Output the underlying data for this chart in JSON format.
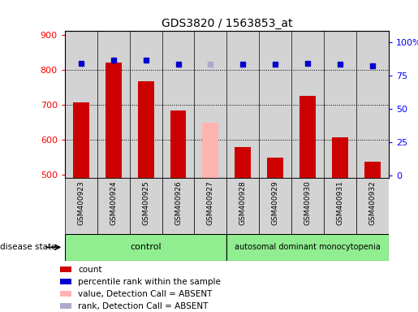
{
  "title": "GDS3820 / 1563853_at",
  "samples": [
    "GSM400923",
    "GSM400924",
    "GSM400925",
    "GSM400926",
    "GSM400927",
    "GSM400928",
    "GSM400929",
    "GSM400930",
    "GSM400931",
    "GSM400932"
  ],
  "bar_values": [
    706,
    820,
    766,
    682,
    648,
    578,
    548,
    724,
    606,
    536
  ],
  "bar_colors": [
    "#cc0000",
    "#cc0000",
    "#cc0000",
    "#cc0000",
    "#ffb3b3",
    "#cc0000",
    "#cc0000",
    "#cc0000",
    "#cc0000",
    "#cc0000"
  ],
  "dot_values": [
    84,
    86,
    86,
    83,
    83,
    83,
    83,
    84,
    83,
    82
  ],
  "dot_colors": [
    "#0000cc",
    "#0000cc",
    "#0000cc",
    "#0000cc",
    "#aaaacc",
    "#0000cc",
    "#0000cc",
    "#0000cc",
    "#0000cc",
    "#0000cc"
  ],
  "ylim_left": [
    490,
    910
  ],
  "ylim_right": [
    -2,
    108
  ],
  "yticks_left": [
    500,
    600,
    700,
    800,
    900
  ],
  "yticks_right": [
    0,
    25,
    50,
    75,
    100
  ],
  "ytick_labels_right": [
    "0",
    "25",
    "50",
    "75",
    "100%"
  ],
  "grid_values": [
    600,
    700,
    800
  ],
  "control_samples": 5,
  "disease_label": "autosomal dominant monocytopenia",
  "control_label": "control",
  "disease_state_label": "disease state",
  "legend_items": [
    {
      "label": "count",
      "color": "#cc0000"
    },
    {
      "label": "percentile rank within the sample",
      "color": "#0000cc"
    },
    {
      "label": "value, Detection Call = ABSENT",
      "color": "#ffb3b3"
    },
    {
      "label": "rank, Detection Call = ABSENT",
      "color": "#aaaacc"
    }
  ],
  "col_bg": "#d3d3d3",
  "plot_bg": "#ffffff",
  "green_light": "#90ee90"
}
